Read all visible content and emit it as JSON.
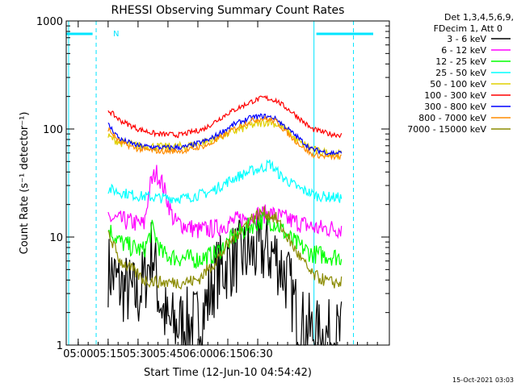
{
  "chart_data": {
    "type": "line",
    "title": "RHESSI Observing Summary Count Rates",
    "xlabel": "Start Time (12-Jun-10 04:54:42)",
    "ylabel": "Count Rate (s⁻¹ detector⁻¹)",
    "yscale": "log",
    "ylim": [
      1,
      1000
    ],
    "x_ticks": [
      "05:00",
      "05:15",
      "05:30",
      "05:45",
      "06:00",
      "06:15",
      "06:30"
    ],
    "y_ticks": [
      "1",
      "10",
      "100",
      "1000"
    ],
    "legend_header": [
      "Det 1,3,4,5,6,9,",
      "FDecim 1, Att 0"
    ],
    "legend_position": "right",
    "night_label": "N",
    "footer_timestamp": "15-Oct-2021 03:03",
    "series": [
      {
        "name": "3 - 6 keV",
        "color": "#000000",
        "points": [
          [
            5.25,
            5
          ],
          [
            5.35,
            3.5
          ],
          [
            5.5,
            2.8
          ],
          [
            5.58,
            5
          ],
          [
            5.62,
            8
          ],
          [
            5.67,
            3
          ],
          [
            5.75,
            1.5
          ],
          [
            6.0,
            1.6
          ],
          [
            6.08,
            2.5
          ],
          [
            6.15,
            4.5
          ],
          [
            6.3,
            6.3
          ],
          [
            6.4,
            6.8
          ],
          [
            6.55,
            7.5
          ],
          [
            6.65,
            6.8
          ],
          [
            6.75,
            4
          ],
          [
            6.85,
            1.6
          ],
          [
            7.0,
            1.2
          ],
          [
            7.2,
            1.2
          ]
        ]
      },
      {
        "name": "6 - 12 keV",
        "color": "#ff00ff",
        "points": [
          [
            5.25,
            15
          ],
          [
            5.4,
            14
          ],
          [
            5.55,
            13
          ],
          [
            5.6,
            30
          ],
          [
            5.65,
            40
          ],
          [
            5.7,
            32
          ],
          [
            5.8,
            14
          ],
          [
            6.0,
            11.5
          ],
          [
            6.15,
            12
          ],
          [
            6.3,
            14
          ],
          [
            6.5,
            16
          ],
          [
            6.6,
            16.5
          ],
          [
            6.75,
            14.5
          ],
          [
            7.0,
            12
          ],
          [
            7.2,
            12
          ]
        ]
      },
      {
        "name": "12 - 25 keV",
        "color": "#00ff00",
        "points": [
          [
            5.25,
            12
          ],
          [
            5.35,
            9
          ],
          [
            5.45,
            8
          ],
          [
            5.55,
            7.5
          ],
          [
            5.62,
            12
          ],
          [
            5.7,
            7
          ],
          [
            5.8,
            6.5
          ],
          [
            6.0,
            6.2
          ],
          [
            6.15,
            7
          ],
          [
            6.3,
            10
          ],
          [
            6.45,
            13
          ],
          [
            6.55,
            14.5
          ],
          [
            6.65,
            13.5
          ],
          [
            6.8,
            9
          ],
          [
            6.95,
            7
          ],
          [
            7.2,
            6.5
          ]
        ]
      },
      {
        "name": "25 - 50 keV",
        "color": "#00ffff",
        "points": [
          [
            5.25,
            28
          ],
          [
            5.35,
            26
          ],
          [
            5.5,
            24
          ],
          [
            5.7,
            23
          ],
          [
            5.9,
            23
          ],
          [
            6.1,
            26
          ],
          [
            6.3,
            35
          ],
          [
            6.45,
            41
          ],
          [
            6.55,
            44
          ],
          [
            6.6,
            48
          ],
          [
            6.7,
            36
          ],
          [
            6.85,
            28
          ],
          [
            7.0,
            24
          ],
          [
            7.2,
            23
          ]
        ]
      },
      {
        "name": "50 - 100 keV",
        "color": "#e0d000",
        "points": [
          [
            5.25,
            85
          ],
          [
            5.35,
            75
          ],
          [
            5.5,
            70
          ],
          [
            5.7,
            68
          ],
          [
            5.9,
            69
          ],
          [
            6.1,
            78
          ],
          [
            6.3,
            95
          ],
          [
            6.45,
            108
          ],
          [
            6.55,
            115
          ],
          [
            6.6,
            118
          ],
          [
            6.7,
            105
          ],
          [
            6.85,
            75
          ],
          [
            7.0,
            62
          ],
          [
            7.2,
            58
          ]
        ]
      },
      {
        "name": "100 - 300 keV",
        "color": "#ff0000",
        "points": [
          [
            5.25,
            150
          ],
          [
            5.35,
            120
          ],
          [
            5.5,
            100
          ],
          [
            5.65,
            90
          ],
          [
            5.85,
            88
          ],
          [
            6.05,
            100
          ],
          [
            6.25,
            140
          ],
          [
            6.45,
            180
          ],
          [
            6.55,
            195
          ],
          [
            6.65,
            185
          ],
          [
            6.8,
            140
          ],
          [
            6.95,
            100
          ],
          [
            7.1,
            90
          ],
          [
            7.2,
            88
          ]
        ]
      },
      {
        "name": "300 - 800 keV",
        "color": "#0000ff",
        "points": [
          [
            5.25,
            110
          ],
          [
            5.35,
            80
          ],
          [
            5.5,
            70
          ],
          [
            5.7,
            67
          ],
          [
            5.9,
            68
          ],
          [
            6.1,
            80
          ],
          [
            6.3,
            110
          ],
          [
            6.45,
            128
          ],
          [
            6.55,
            132
          ],
          [
            6.65,
            125
          ],
          [
            6.8,
            90
          ],
          [
            6.95,
            65
          ],
          [
            7.1,
            60
          ],
          [
            7.2,
            60
          ]
        ]
      },
      {
        "name": "800 - 7000 keV",
        "color": "#ff8c00",
        "points": [
          [
            5.25,
            100
          ],
          [
            5.35,
            75
          ],
          [
            5.5,
            65
          ],
          [
            5.7,
            62
          ],
          [
            5.9,
            63
          ],
          [
            6.1,
            72
          ],
          [
            6.3,
            100
          ],
          [
            6.45,
            120
          ],
          [
            6.55,
            125
          ],
          [
            6.65,
            118
          ],
          [
            6.8,
            80
          ],
          [
            6.95,
            58
          ],
          [
            7.1,
            55
          ],
          [
            7.2,
            55
          ]
        ]
      },
      {
        "name": "7000 - 15000 keV",
        "color": "#8b8b00",
        "points": [
          [
            5.25,
            11
          ],
          [
            5.35,
            6
          ],
          [
            5.45,
            5
          ],
          [
            5.55,
            4
          ],
          [
            5.7,
            3.8
          ],
          [
            5.85,
            3.8
          ],
          [
            6.0,
            4
          ],
          [
            6.15,
            6
          ],
          [
            6.3,
            10
          ],
          [
            6.45,
            15
          ],
          [
            6.55,
            17
          ],
          [
            6.65,
            15
          ],
          [
            6.8,
            8
          ],
          [
            6.95,
            4.5
          ],
          [
            7.1,
            3.8
          ],
          [
            7.2,
            3.8
          ]
        ]
      }
    ]
  }
}
